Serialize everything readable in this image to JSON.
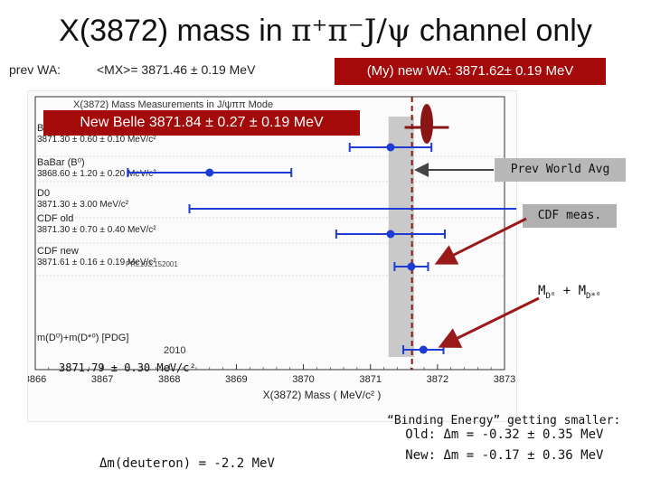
{
  "title": {
    "prefix": "X(3872) mass in ",
    "particles": "π⁺π⁻J/ψ",
    "suffix": " channel only"
  },
  "prev_wa": {
    "label": "prev WA:",
    "value": "<MX>= 3871.46 ± 0.19 MeV"
  },
  "new_wa": "(My) new WA: 3871.62± 0.19 MeV",
  "belle": "New Belle 3871.84 ± 0.27 ± 0.19 MeV",
  "callouts": {
    "prev_world": "Prev World Avg",
    "cdf": "CDF meas.",
    "md": "M",
    "md_sub1": "D⁰",
    "md_plus": " + M",
    "md_sub2": "D*⁰"
  },
  "pdg_value": "3871.79 ± 0.30 MeV/c²",
  "deuteron": "Δm(deuteron) = -2.2 MeV",
  "binding": {
    "title": "“Binding Energy” getting smaller:",
    "old_label": "Old:",
    "old_value": "Δm = -0.32 ± 0.35 MeV",
    "new_label": "New:",
    "new_value": "Δm = -0.17 ± 0.36 MeV"
  },
  "chart_data": {
    "type": "scatter",
    "title": "X(3872) Mass Measurements in J/ψππ Mode",
    "xlabel": "X(3872) Mass  ( MeV/c² )",
    "xlim": [
      3866,
      3873
    ],
    "x_ticks": [
      "3866",
      "3867",
      "3868",
      "3869",
      "3870",
      "3871",
      "3872",
      "3873"
    ],
    "entries": [
      {
        "lines": [
          "Belle"
        ],
        "x": 3871.84,
        "xerr": 0.33,
        "color": "#8a1515",
        "shape": "ellipse",
        "marker": true
      },
      {
        "lines": [
          "BaBar (B⁺)",
          "3871.30 ± 0.60 ± 0.10 MeV/c²"
        ],
        "x": 3871.3,
        "xerr": 0.61,
        "color": "#1e3bd4",
        "marker": true
      },
      {
        "lines": [
          "BaBar (B⁰)",
          "3868.60 ± 1.20 ± 0.20 MeV/c²"
        ],
        "x": 3868.6,
        "xerr": 1.22,
        "color": "#1e3bd4",
        "marker": true
      },
      {
        "lines": [
          "D0",
          "3871.30 ± 3.00 MeV/c²"
        ],
        "x": 3871.3,
        "xerr": 3.0,
        "color": "#1e3bd4",
        "marker": false
      },
      {
        "lines": [
          "CDF old",
          "3871.30 ± 0.70 ± 0.40 MeV/c²"
        ],
        "x": 3871.3,
        "xerr": 0.81,
        "color": "#1e3bd4",
        "marker": true
      },
      {
        "lines": [
          "CDF new",
          "3871.61 ± 0.16 ± 0.19 MeV/c²"
        ],
        "x": 3871.61,
        "xerr": 0.25,
        "color": "#1e3bd4",
        "marker": true,
        "note": "PRL103,152001"
      },
      {
        "lines": [
          "m(D⁰)+m(D*⁰) [PDG]",
          "2010"
        ],
        "x": 3871.79,
        "xerr": 0.3,
        "color": "#1e3bd4",
        "marker": true
      }
    ],
    "reference_band": {
      "label": "Prev World Avg",
      "x": 3871.46,
      "err": 0.19
    },
    "reference_line": {
      "label": "new WA",
      "x": 3871.62
    }
  }
}
